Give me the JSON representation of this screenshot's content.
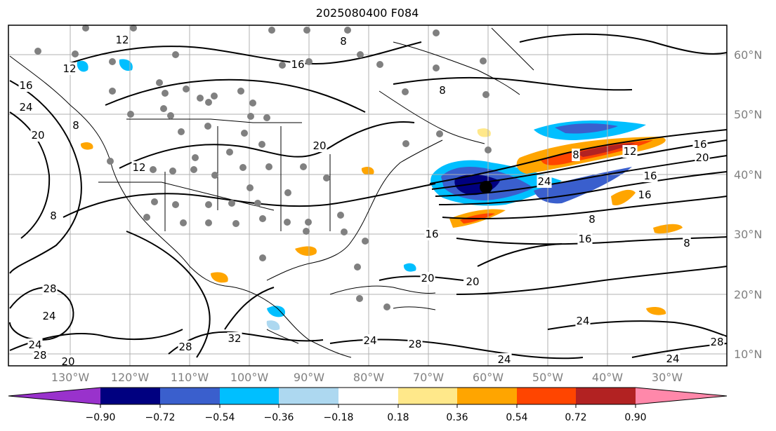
{
  "title": "2025080400 F084",
  "lat_labels": [
    "60°N",
    "50°N",
    "40°N",
    "30°N",
    "20°N",
    "10°N"
  ],
  "lon_labels": [
    "130°W",
    "120°W",
    "110°W",
    "100°W",
    "90°W",
    "80°W",
    "70°W",
    "60°W",
    "50°W",
    "40°W",
    "30°W"
  ],
  "colorbar": {
    "ticks": [
      "−0.90",
      "−0.72",
      "−0.54",
      "−0.36",
      "−0.18",
      "0.18",
      "0.36",
      "0.54",
      "0.72",
      "0.90"
    ],
    "colors": [
      "#9932cc",
      "#000080",
      "#3a5fcd",
      "#00bfff",
      "#add8f0",
      "#ffffff",
      "#ffe88a",
      "#ffa500",
      "#ff4500",
      "#b22222",
      "#ff88aa"
    ]
  },
  "contour_labels": [
    "12",
    "8",
    "16",
    "12",
    "16",
    "8",
    "20",
    "24",
    "8",
    "12",
    "8",
    "16",
    "20",
    "16",
    "24",
    "8",
    "16",
    "12",
    "20",
    "16",
    "8",
    "16",
    "8",
    "20",
    "20",
    "28",
    "24",
    "24",
    "28",
    "20",
    "28",
    "32",
    "24",
    "24",
    "28",
    "24",
    "28",
    "24"
  ]
}
